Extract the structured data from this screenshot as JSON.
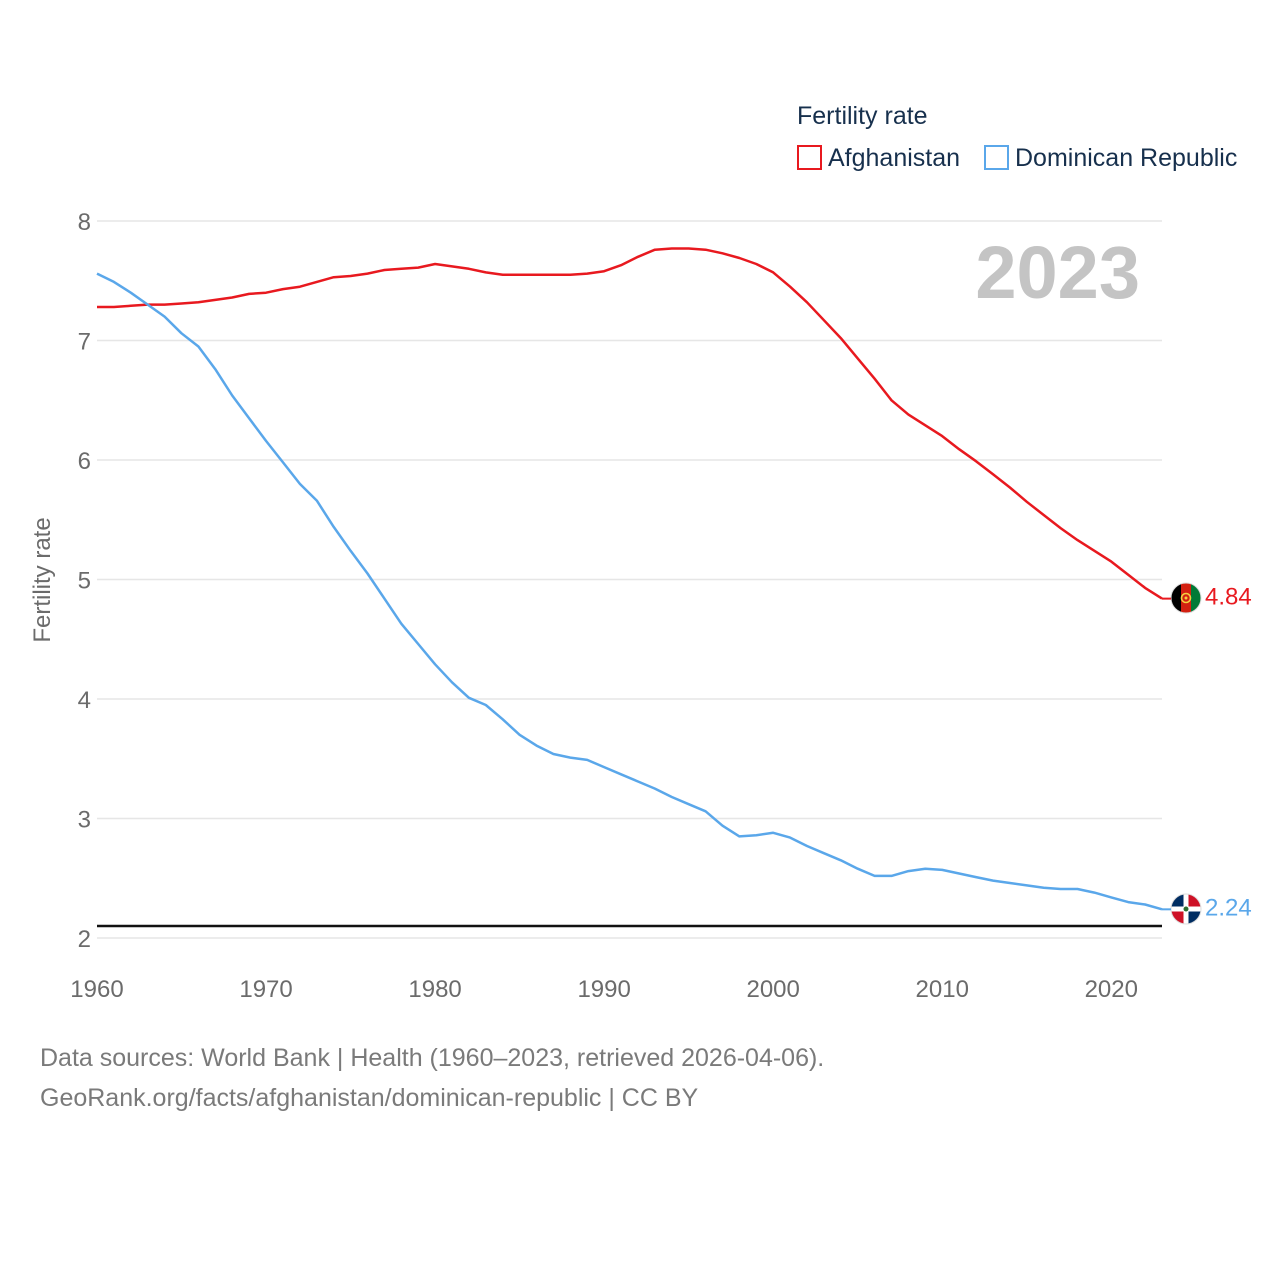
{
  "legend": {
    "title": "Fertility rate",
    "items": [
      {
        "label": "Afghanistan",
        "color": "#e8191f"
      },
      {
        "label": "Dominican Republic",
        "color": "#5aa7ea"
      }
    ]
  },
  "year_label": "2023",
  "footer": {
    "line1": "Data sources: World Bank | Health (1960–2023, retrieved 2026-04-06).",
    "line2": "GeoRank.org/facts/afghanistan/dominican-republic | CC BY"
  },
  "chart_data": {
    "type": "line",
    "title": "Fertility rate",
    "xlabel": "",
    "ylabel": "Fertility rate",
    "xlim": [
      1960,
      2023
    ],
    "ylim": [
      2,
      8
    ],
    "x_ticks": [
      1960,
      1970,
      1980,
      1990,
      2000,
      2010,
      2020
    ],
    "y_ticks": [
      2,
      3,
      4,
      5,
      6,
      7,
      8
    ],
    "reference_line": 2.1,
    "grid": true,
    "x": [
      1960,
      1961,
      1962,
      1963,
      1964,
      1965,
      1966,
      1967,
      1968,
      1969,
      1970,
      1971,
      1972,
      1973,
      1974,
      1975,
      1976,
      1977,
      1978,
      1979,
      1980,
      1981,
      1982,
      1983,
      1984,
      1985,
      1986,
      1987,
      1988,
      1989,
      1990,
      1991,
      1992,
      1993,
      1994,
      1995,
      1996,
      1997,
      1998,
      1999,
      2000,
      2001,
      2002,
      2003,
      2004,
      2005,
      2006,
      2007,
      2008,
      2009,
      2010,
      2011,
      2012,
      2013,
      2014,
      2015,
      2016,
      2017,
      2018,
      2019,
      2020,
      2021,
      2022,
      2023
    ],
    "series": [
      {
        "name": "Afghanistan",
        "color": "#e8191f",
        "end_label": "4.84",
        "values": [
          7.28,
          7.28,
          7.29,
          7.3,
          7.3,
          7.31,
          7.32,
          7.34,
          7.36,
          7.39,
          7.4,
          7.43,
          7.45,
          7.49,
          7.53,
          7.54,
          7.56,
          7.59,
          7.6,
          7.61,
          7.64,
          7.62,
          7.6,
          7.57,
          7.55,
          7.55,
          7.55,
          7.55,
          7.55,
          7.56,
          7.58,
          7.63,
          7.7,
          7.76,
          7.77,
          7.77,
          7.76,
          7.73,
          7.69,
          7.64,
          7.57,
          7.45,
          7.32,
          7.17,
          7.02,
          6.85,
          6.68,
          6.5,
          6.38,
          6.29,
          6.2,
          6.09,
          5.99,
          5.88,
          5.77,
          5.65,
          5.54,
          5.43,
          5.33,
          5.24,
          5.15,
          5.04,
          4.93,
          4.84
        ]
      },
      {
        "name": "Dominican Republic",
        "color": "#5aa7ea",
        "end_label": "2.24",
        "values": [
          7.56,
          7.49,
          7.4,
          7.3,
          7.2,
          7.06,
          6.95,
          6.76,
          6.54,
          6.35,
          6.16,
          5.98,
          5.8,
          5.66,
          5.44,
          5.24,
          5.05,
          4.84,
          4.63,
          4.46,
          4.29,
          4.14,
          4.01,
          3.95,
          3.83,
          3.7,
          3.61,
          3.54,
          3.51,
          3.49,
          3.43,
          3.37,
          3.31,
          3.25,
          3.18,
          3.12,
          3.06,
          2.94,
          2.85,
          2.86,
          2.88,
          2.84,
          2.77,
          2.71,
          2.65,
          2.58,
          2.52,
          2.52,
          2.56,
          2.58,
          2.57,
          2.54,
          2.51,
          2.48,
          2.46,
          2.44,
          2.42,
          2.41,
          2.41,
          2.38,
          2.34,
          2.3,
          2.28,
          2.24
        ]
      }
    ]
  }
}
